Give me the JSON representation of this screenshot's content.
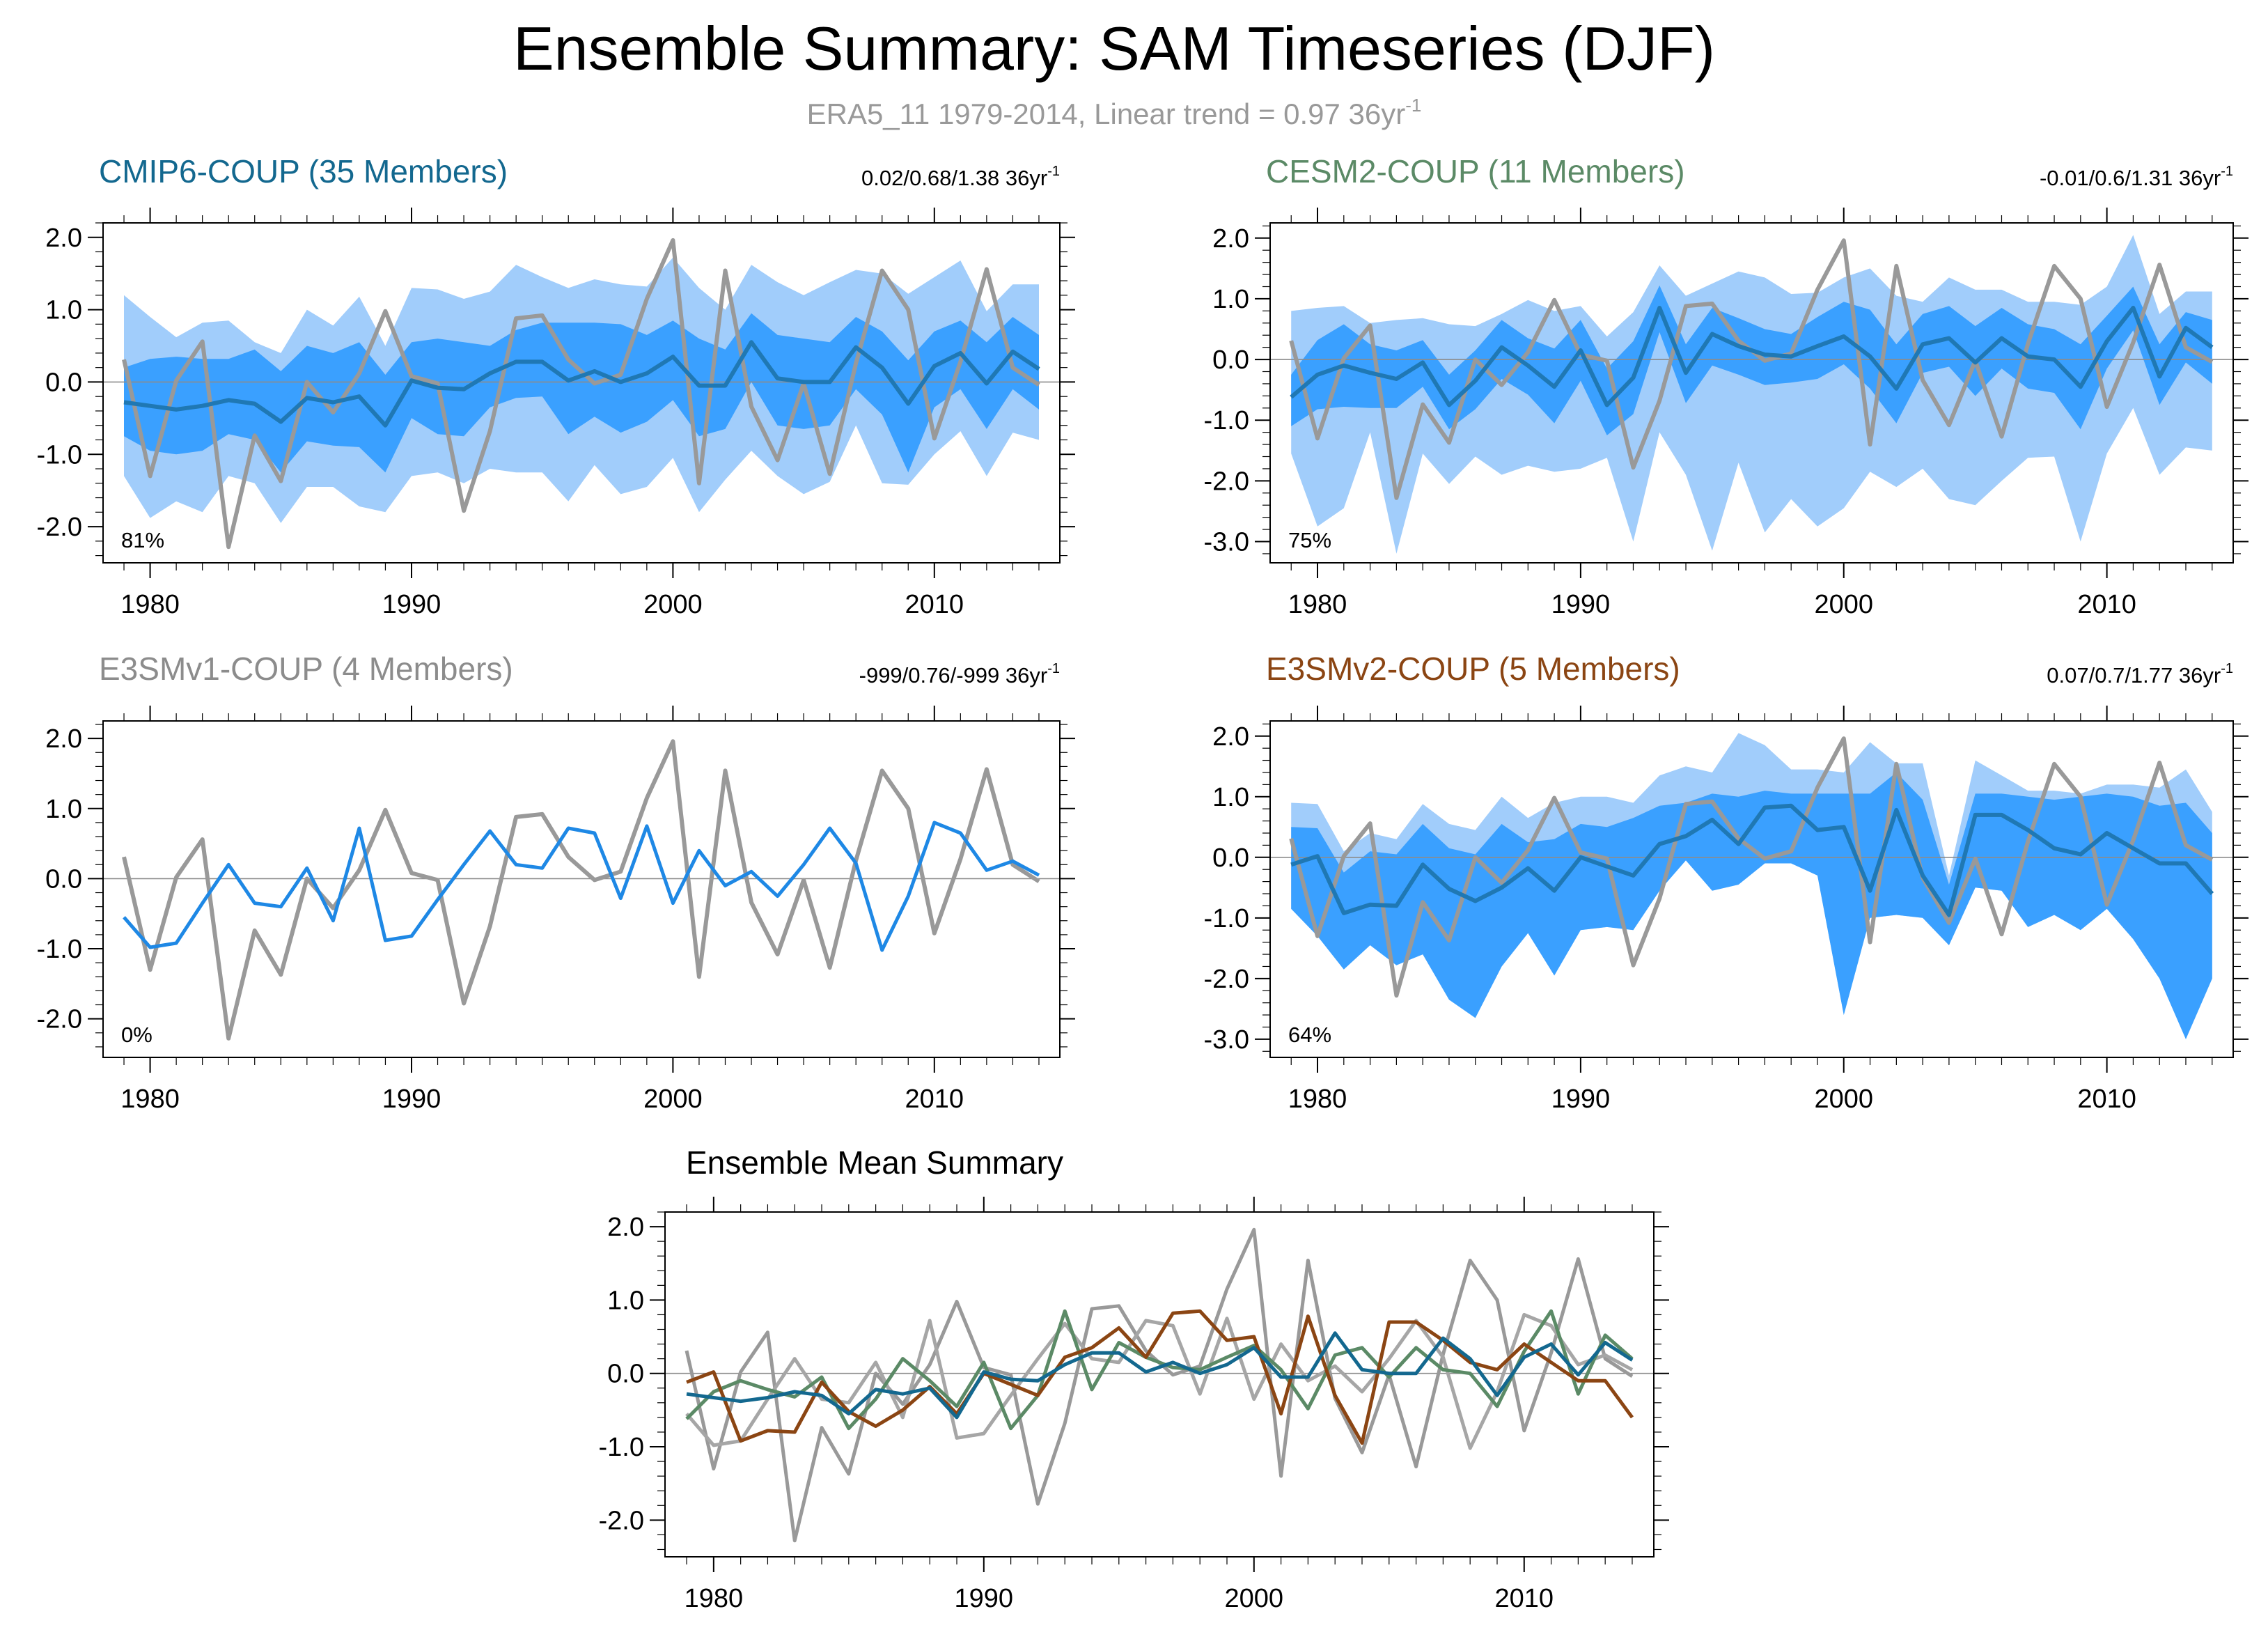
{
  "title": "Ensemble Summary: SAM Timeseries (DJF)",
  "subtitle": {
    "prefix": "ERA5_11 1979-2014, Linear trend = 0.97 36yr",
    "exponent": "-1"
  },
  "colors": {
    "obs": "#999999",
    "mean_blue": "#1f78b4",
    "band_outer": "#a1cdfb",
    "band_inner": "#3aa0ff",
    "cmip6": "#13688f",
    "cesm2": "#5b8a66",
    "e3smv1": "#8c8c8c",
    "e3smv2": "#8b4513",
    "e3smv1_line": "#1e88e5"
  },
  "chart_data": [
    {
      "type": "line",
      "id": "cmip6",
      "title": "CMIP6-COUP (35 Members)",
      "title_color": "#13688f",
      "stats": "0.02/0.68/1.38 36yr",
      "stats_exponent": "-1",
      "percent_label": "81%",
      "xlim": [
        1978.2,
        2014.8
      ],
      "ylim": [
        -2.5,
        2.2
      ],
      "yticks": [
        2.0,
        1.0,
        0.0,
        -1.0,
        -2.0
      ],
      "ytick_labels": [
        "2.0",
        "1.0",
        "0.0",
        "-1.0",
        "-2.0"
      ],
      "xticks": [
        1980,
        1990,
        2000,
        2010
      ],
      "xtick_labels": [
        "1980",
        "1990",
        "2000",
        "2010"
      ],
      "x_start": 1979,
      "obs": [
        0.31,
        -1.3,
        0.02,
        0.56,
        -2.28,
        -0.74,
        -1.37,
        0.0,
        -0.42,
        0.12,
        0.98,
        0.08,
        -0.02,
        -1.78,
        -0.68,
        0.88,
        0.92,
        0.31,
        -0.02,
        0.1,
        1.15,
        1.96,
        -1.4,
        1.54,
        -0.34,
        -1.08,
        -0.02,
        -1.27,
        0.26,
        1.54,
        1.0,
        -0.78,
        0.28,
        1.56,
        0.2,
        -0.04
      ],
      "mean": [
        -0.28,
        -0.33,
        -0.38,
        -0.33,
        -0.25,
        -0.3,
        -0.55,
        -0.22,
        -0.28,
        -0.2,
        -0.6,
        0.02,
        -0.08,
        -0.1,
        0.12,
        0.28,
        0.28,
        0.02,
        0.15,
        0.0,
        0.12,
        0.35,
        -0.05,
        -0.05,
        0.55,
        0.05,
        0.0,
        0.0,
        0.48,
        0.2,
        -0.3,
        0.22,
        0.4,
        -0.02,
        0.42,
        0.18
      ],
      "inner_upper": [
        0.2,
        0.32,
        0.35,
        0.32,
        0.32,
        0.45,
        0.15,
        0.5,
        0.4,
        0.55,
        0.1,
        0.55,
        0.6,
        0.55,
        0.5,
        0.72,
        0.82,
        0.82,
        0.82,
        0.8,
        0.65,
        0.85,
        0.6,
        0.45,
        0.95,
        0.65,
        0.6,
        0.55,
        0.9,
        0.7,
        0.3,
        0.7,
        0.85,
        0.55,
        0.9,
        0.65
      ],
      "inner_lower": [
        -0.75,
        -0.95,
        -1.0,
        -0.95,
        -0.72,
        -0.8,
        -1.25,
        -0.82,
        -0.88,
        -0.9,
        -1.25,
        -0.5,
        -0.72,
        -0.75,
        -0.35,
        -0.22,
        -0.2,
        -0.72,
        -0.48,
        -0.7,
        -0.55,
        -0.25,
        -0.75,
        -0.65,
        0.0,
        -0.6,
        -0.65,
        -0.6,
        -0.1,
        -0.45,
        -1.25,
        -0.35,
        -0.1,
        -0.65,
        -0.1,
        -0.38
      ],
      "outer_upper": [
        1.2,
        0.9,
        0.62,
        0.82,
        0.85,
        0.55,
        0.4,
        1.0,
        0.78,
        1.18,
        0.5,
        1.3,
        1.28,
        1.15,
        1.25,
        1.62,
        1.45,
        1.3,
        1.42,
        1.35,
        1.32,
        1.72,
        1.3,
        1.0,
        1.62,
        1.38,
        1.2,
        1.38,
        1.55,
        1.5,
        1.22,
        1.45,
        1.68,
        0.98,
        1.35,
        1.35
      ],
      "outer_lower": [
        -1.3,
        -1.88,
        -1.65,
        -1.8,
        -1.3,
        -1.4,
        -1.95,
        -1.45,
        -1.45,
        -1.72,
        -1.8,
        -1.3,
        -1.25,
        -1.4,
        -1.2,
        -1.25,
        -1.25,
        -1.65,
        -1.15,
        -1.55,
        -1.45,
        -1.05,
        -1.8,
        -1.35,
        -0.95,
        -1.3,
        -1.55,
        -1.38,
        -0.6,
        -1.4,
        -1.42,
        -1.0,
        -0.68,
        -1.3,
        -0.7,
        -0.8
      ]
    },
    {
      "type": "line",
      "id": "cesm2",
      "title": "CESM2-COUP (11 Members)",
      "title_color": "#5b8a66",
      "stats": "-0.01/0.6/1.31 36yr",
      "stats_exponent": "-1",
      "percent_label": "75%",
      "xlim": [
        1978.2,
        2014.8
      ],
      "ylim": [
        -3.35,
        2.25
      ],
      "yticks": [
        2.0,
        1.0,
        0.0,
        -1.0,
        -2.0,
        -3.0
      ],
      "ytick_labels": [
        "2.0",
        "1.0",
        "0.0",
        "-1.0",
        "-2.0",
        "-3.0"
      ],
      "xticks": [
        1980,
        1990,
        2000,
        2010
      ],
      "xtick_labels": [
        "1980",
        "1990",
        "2000",
        "2010"
      ],
      "x_start": 1979,
      "obs": [
        0.31,
        -1.3,
        0.02,
        0.56,
        -2.28,
        -0.74,
        -1.37,
        0.0,
        -0.42,
        0.12,
        0.98,
        0.08,
        -0.02,
        -1.78,
        -0.68,
        0.88,
        0.92,
        0.31,
        -0.02,
        0.1,
        1.15,
        1.96,
        -1.4,
        1.54,
        -0.34,
        -1.08,
        -0.02,
        -1.27,
        0.26,
        1.54,
        1.0,
        -0.78,
        0.28,
        1.56,
        0.2,
        -0.04
      ],
      "mean": [
        -0.62,
        -0.25,
        -0.1,
        -0.22,
        -0.32,
        -0.05,
        -0.75,
        -0.35,
        0.2,
        -0.1,
        -0.45,
        0.15,
        -0.75,
        -0.3,
        0.85,
        -0.22,
        0.42,
        0.22,
        0.08,
        0.05,
        0.22,
        0.38,
        0.05,
        -0.48,
        0.25,
        0.35,
        -0.05,
        0.35,
        0.05,
        0.0,
        -0.45,
        0.3,
        0.85,
        -0.28,
        0.52,
        0.2
      ],
      "inner_upper": [
        -0.25,
        0.32,
        0.58,
        0.25,
        0.15,
        0.32,
        -0.25,
        0.15,
        0.65,
        0.35,
        0.18,
        0.65,
        -0.15,
        0.3,
        1.22,
        0.25,
        0.85,
        0.68,
        0.5,
        0.42,
        0.7,
        0.95,
        0.82,
        0.25,
        0.75,
        0.88,
        0.55,
        0.85,
        0.58,
        0.5,
        0.25,
        0.72,
        1.2,
        0.25,
        0.78,
        0.65
      ],
      "inner_lower": [
        -1.1,
        -0.82,
        -0.78,
        -0.8,
        -0.8,
        -0.45,
        -1.15,
        -0.82,
        -0.32,
        -0.58,
        -1.05,
        -0.35,
        -1.25,
        -0.9,
        0.45,
        -0.72,
        -0.1,
        -0.25,
        -0.42,
        -0.38,
        -0.32,
        -0.08,
        -0.48,
        -1.05,
        -0.22,
        -0.12,
        -0.6,
        -0.15,
        -0.48,
        -0.55,
        -1.15,
        -0.15,
        0.48,
        -0.75,
        -0.05,
        -0.4
      ],
      "outer_upper": [
        0.8,
        0.85,
        0.88,
        0.6,
        0.65,
        0.68,
        0.58,
        0.55,
        0.75,
        0.98,
        0.8,
        0.88,
        0.38,
        0.78,
        1.55,
        1.05,
        1.25,
        1.45,
        1.35,
        1.08,
        1.1,
        1.35,
        1.5,
        1.05,
        0.95,
        1.35,
        1.15,
        1.15,
        0.95,
        0.95,
        0.9,
        1.2,
        2.05,
        0.75,
        1.12,
        1.12
      ],
      "outer_lower": [
        -1.55,
        -2.75,
        -2.45,
        -1.2,
        -3.2,
        -1.55,
        -2.05,
        -1.6,
        -1.9,
        -1.75,
        -1.85,
        -1.8,
        -1.62,
        -3.0,
        -1.2,
        -1.9,
        -3.15,
        -1.7,
        -2.85,
        -2.3,
        -2.75,
        -2.45,
        -1.85,
        -2.1,
        -1.8,
        -2.3,
        -2.4,
        -2.0,
        -1.62,
        -1.6,
        -3.0,
        -1.55,
        -0.8,
        -1.9,
        -1.45,
        -1.5
      ]
    },
    {
      "type": "line",
      "id": "e3smv1",
      "title": "E3SMv1-COUP (4 Members)",
      "title_color": "#8c8c8c",
      "stats": "-999/0.76/-999 36yr",
      "stats_exponent": "-1",
      "percent_label": "0%",
      "xlim": [
        1978.2,
        2014.8
      ],
      "ylim": [
        -2.55,
        2.25
      ],
      "yticks": [
        2.0,
        1.0,
        0.0,
        -1.0,
        -2.0
      ],
      "ytick_labels": [
        "2.0",
        "1.0",
        "0.0",
        "-1.0",
        "-2.0"
      ],
      "xticks": [
        1980,
        1990,
        2000,
        2010
      ],
      "xtick_labels": [
        "1980",
        "1990",
        "2000",
        "2010"
      ],
      "x_start": 1979,
      "obs": [
        0.31,
        -1.3,
        0.02,
        0.56,
        -2.28,
        -0.74,
        -1.37,
        0.0,
        -0.42,
        0.12,
        0.98,
        0.08,
        -0.02,
        -1.78,
        -0.68,
        0.88,
        0.92,
        0.31,
        -0.02,
        0.1,
        1.15,
        1.96,
        -1.4,
        1.54,
        -0.34,
        -1.08,
        -0.02,
        -1.27,
        0.26,
        1.54,
        1.0,
        -0.78,
        0.28,
        1.56,
        0.2,
        -0.04
      ],
      "mean": [
        -0.55,
        -0.98,
        -0.92,
        -0.35,
        0.2,
        -0.35,
        -0.4,
        0.15,
        -0.6,
        0.72,
        -0.88,
        -0.82,
        -0.3,
        0.2,
        0.68,
        0.2,
        0.15,
        0.72,
        0.65,
        -0.28,
        0.75,
        -0.35,
        0.4,
        -0.1,
        0.1,
        -0.25,
        0.2,
        0.72,
        0.22,
        -1.02,
        -0.25,
        0.8,
        0.65,
        0.12,
        0.25,
        0.05
      ]
    },
    {
      "type": "line",
      "id": "e3smv2",
      "title": "E3SMv2-COUP (5 Members)",
      "title_color": "#8b4513",
      "stats": "0.07/0.7/1.77 36yr",
      "stats_exponent": "-1",
      "percent_label": "64%",
      "xlim": [
        1978.2,
        2014.8
      ],
      "ylim": [
        -3.3,
        2.25
      ],
      "yticks": [
        2.0,
        1.0,
        0.0,
        -1.0,
        -2.0,
        -3.0
      ],
      "ytick_labels": [
        "2.0",
        "1.0",
        "0.0",
        "-1.0",
        "-2.0",
        "-3.0"
      ],
      "xticks": [
        1980,
        1990,
        2000,
        2010
      ],
      "xtick_labels": [
        "1980",
        "1990",
        "2000",
        "2010"
      ],
      "x_start": 1979,
      "obs": [
        0.31,
        -1.3,
        0.02,
        0.56,
        -2.28,
        -0.74,
        -1.37,
        0.0,
        -0.42,
        0.12,
        0.98,
        0.08,
        -0.02,
        -1.78,
        -0.68,
        0.88,
        0.92,
        0.31,
        -0.02,
        0.1,
        1.15,
        1.96,
        -1.4,
        1.54,
        -0.34,
        -1.08,
        -0.02,
        -1.27,
        0.26,
        1.54,
        1.0,
        -0.78,
        0.28,
        1.56,
        0.2,
        -0.04
      ],
      "mean": [
        -0.12,
        0.02,
        -0.92,
        -0.78,
        -0.8,
        -0.12,
        -0.52,
        -0.72,
        -0.5,
        -0.18,
        -0.55,
        0.0,
        -0.15,
        -0.3,
        0.22,
        0.35,
        0.62,
        0.22,
        0.82,
        0.85,
        0.45,
        0.5,
        -0.55,
        0.78,
        -0.3,
        -0.95,
        0.7,
        0.7,
        0.45,
        0.15,
        0.05,
        0.4,
        0.15,
        -0.1,
        -0.1,
        -0.6
      ],
      "inner_upper": [
        0.5,
        0.48,
        -0.25,
        0.1,
        0.05,
        0.55,
        0.15,
        0.05,
        0.55,
        0.25,
        0.3,
        0.55,
        0.5,
        0.65,
        0.85,
        0.9,
        1.05,
        1.0,
        1.1,
        1.05,
        1.05,
        1.05,
        1.05,
        1.4,
        0.95,
        -0.45,
        1.05,
        1.05,
        1.0,
        0.95,
        1.0,
        1.05,
        1.0,
        0.85,
        0.9,
        0.4
      ],
      "inner_lower": [
        -0.85,
        -1.3,
        -1.85,
        -1.45,
        -1.78,
        -1.6,
        -2.35,
        -2.65,
        -1.8,
        -1.25,
        -1.95,
        -1.2,
        -1.15,
        -1.2,
        -0.55,
        -0.05,
        -0.55,
        -0.45,
        -0.1,
        -0.1,
        -0.3,
        -2.6,
        -1.0,
        -0.95,
        -1.0,
        -1.45,
        -0.5,
        -0.55,
        -1.15,
        -0.95,
        -1.2,
        -0.85,
        -1.35,
        -2.0,
        -3.0,
        -2.0
      ],
      "outer_upper": [
        0.9,
        0.88,
        0.1,
        0.4,
        0.3,
        0.88,
        0.55,
        0.45,
        1.0,
        0.65,
        0.9,
        1.0,
        1.0,
        0.9,
        1.35,
        1.5,
        1.4,
        2.05,
        1.85,
        1.45,
        1.45,
        1.4,
        1.9,
        1.55,
        1.55,
        -0.3,
        1.6,
        1.35,
        1.1,
        1.1,
        1.05,
        1.2,
        1.2,
        1.15,
        1.45,
        0.75
      ],
      "outer_lower": [
        -0.85,
        -1.3,
        -1.85,
        -1.45,
        -1.78,
        -1.6,
        -2.35,
        -2.65,
        -1.8,
        -1.25,
        -1.95,
        -1.2,
        -1.15,
        -1.2,
        -0.55,
        -0.05,
        -0.55,
        -0.45,
        -0.1,
        -0.1,
        -0.3,
        -2.6,
        -1.0,
        -0.95,
        -1.0,
        -1.45,
        -0.5,
        -0.55,
        -1.15,
        -0.95,
        -1.2,
        -0.85,
        -1.35,
        -2.0,
        -3.0,
        -2.0
      ]
    },
    {
      "type": "line",
      "id": "summary",
      "title": "Ensemble Mean Summary",
      "title_color": "#000000",
      "xlim": [
        1978.2,
        2014.8
      ],
      "ylim": [
        -2.5,
        2.2
      ],
      "yticks": [
        2.0,
        1.0,
        0.0,
        -1.0,
        -2.0
      ],
      "ytick_labels": [
        "2.0",
        "1.0",
        "0.0",
        "-1.0",
        "-2.0"
      ],
      "xticks": [
        1980,
        1990,
        2000,
        2010
      ],
      "xtick_labels": [
        "1980",
        "1990",
        "2000",
        "2010"
      ],
      "x_start": 1979,
      "series": [
        {
          "name": "ERA5_11",
          "color": "#999999",
          "values": [
            0.31,
            -1.3,
            0.02,
            0.56,
            -2.28,
            -0.74,
            -1.37,
            0.0,
            -0.42,
            0.12,
            0.98,
            0.08,
            -0.02,
            -1.78,
            -0.68,
            0.88,
            0.92,
            0.31,
            -0.02,
            0.1,
            1.15,
            1.96,
            -1.4,
            1.54,
            -0.34,
            -1.08,
            -0.02,
            -1.27,
            0.26,
            1.54,
            1.0,
            -0.78,
            0.28,
            1.56,
            0.2,
            -0.04
          ]
        },
        {
          "name": "E3SMv1-COUP",
          "color": "#a6a6a6",
          "values": [
            -0.55,
            -0.98,
            -0.92,
            -0.35,
            0.2,
            -0.35,
            -0.4,
            0.15,
            -0.6,
            0.72,
            -0.88,
            -0.82,
            -0.3,
            0.2,
            0.68,
            0.2,
            0.15,
            0.72,
            0.65,
            -0.28,
            0.75,
            -0.35,
            0.4,
            -0.1,
            0.1,
            -0.25,
            0.2,
            0.72,
            0.22,
            -1.02,
            -0.25,
            0.8,
            0.65,
            0.12,
            0.25,
            0.05
          ]
        },
        {
          "name": "CESM2-COUP",
          "color": "#5b8a66",
          "values": [
            -0.62,
            -0.25,
            -0.1,
            -0.22,
            -0.32,
            -0.05,
            -0.75,
            -0.35,
            0.2,
            -0.1,
            -0.45,
            0.15,
            -0.75,
            -0.3,
            0.85,
            -0.22,
            0.42,
            0.22,
            0.08,
            0.05,
            0.22,
            0.38,
            0.05,
            -0.48,
            0.25,
            0.35,
            -0.05,
            0.35,
            0.05,
            0.0,
            -0.45,
            0.3,
            0.85,
            -0.28,
            0.52,
            0.2
          ]
        },
        {
          "name": "E3SMv2-COUP",
          "color": "#8b4513",
          "values": [
            -0.12,
            0.02,
            -0.92,
            -0.78,
            -0.8,
            -0.12,
            -0.52,
            -0.72,
            -0.5,
            -0.18,
            -0.55,
            0.0,
            -0.15,
            -0.3,
            0.22,
            0.35,
            0.62,
            0.22,
            0.82,
            0.85,
            0.45,
            0.5,
            -0.55,
            0.78,
            -0.3,
            -0.95,
            0.7,
            0.7,
            0.45,
            0.15,
            0.05,
            0.4,
            0.15,
            -0.1,
            -0.1,
            -0.6
          ]
        },
        {
          "name": "CMIP6-COUP",
          "color": "#13688f",
          "values": [
            -0.28,
            -0.33,
            -0.38,
            -0.33,
            -0.25,
            -0.3,
            -0.55,
            -0.22,
            -0.28,
            -0.2,
            -0.6,
            0.02,
            -0.08,
            -0.1,
            0.12,
            0.28,
            0.28,
            0.02,
            0.15,
            0.0,
            0.12,
            0.35,
            -0.05,
            -0.05,
            0.55,
            0.05,
            0.0,
            0.0,
            0.48,
            0.2,
            -0.3,
            0.22,
            0.4,
            -0.02,
            0.42,
            0.18
          ]
        }
      ]
    }
  ]
}
